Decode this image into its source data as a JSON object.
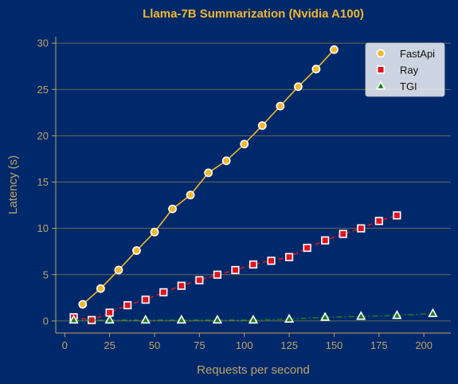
{
  "colors": {
    "background": "#00296b",
    "title": "#f0b82c",
    "text": "#bfa366",
    "grid": "#8a7f4a",
    "fastapi": "#f0b82c",
    "ray": "#e0141e",
    "tgi": "#1d7a1d"
  },
  "chart_data": {
    "type": "line",
    "title": "Llama-7B Summarization (Nvidia A100)",
    "xlabel": "Requests per second",
    "ylabel": "Latency (s)",
    "xlim": [
      -5,
      215
    ],
    "ylim": [
      -1.3,
      30.7
    ],
    "xticks": [
      0,
      25,
      50,
      75,
      100,
      125,
      150,
      175,
      200
    ],
    "yticks": [
      0,
      5,
      10,
      15,
      20,
      25,
      30
    ],
    "grid": "horizontal",
    "legend_position": "top-right",
    "series": [
      {
        "name": "FastApi",
        "marker": "circle",
        "line_style": "solid",
        "color": "#f0b82c",
        "x": [
          10,
          20,
          30,
          40,
          50,
          60,
          70,
          80,
          90,
          100,
          110,
          120,
          130,
          140,
          150
        ],
        "y": [
          1.8,
          3.5,
          5.5,
          7.6,
          9.6,
          12.1,
          13.6,
          16.0,
          17.3,
          19.1,
          21.1,
          23.2,
          25.3,
          27.2,
          29.3
        ]
      },
      {
        "name": "Ray",
        "marker": "square",
        "line_style": "dashed",
        "color": "#e0141e",
        "x": [
          5,
          15,
          25,
          35,
          45,
          55,
          65,
          75,
          85,
          95,
          105,
          115,
          125,
          135,
          145,
          155,
          165,
          175,
          185
        ],
        "y": [
          0.4,
          0.1,
          0.9,
          1.7,
          2.3,
          3.1,
          3.8,
          4.4,
          5.0,
          5.5,
          6.1,
          6.5,
          6.9,
          7.9,
          8.7,
          9.4,
          10.0,
          10.8,
          11.4
        ]
      },
      {
        "name": "TGI",
        "marker": "triangle",
        "line_style": "dash-dot",
        "color": "#1d7a1d",
        "x": [
          5,
          25,
          45,
          65,
          85,
          105,
          125,
          145,
          165,
          185,
          205
        ],
        "y": [
          0.1,
          0.1,
          0.1,
          0.1,
          0.1,
          0.1,
          0.2,
          0.4,
          0.5,
          0.6,
          0.8
        ]
      }
    ]
  }
}
